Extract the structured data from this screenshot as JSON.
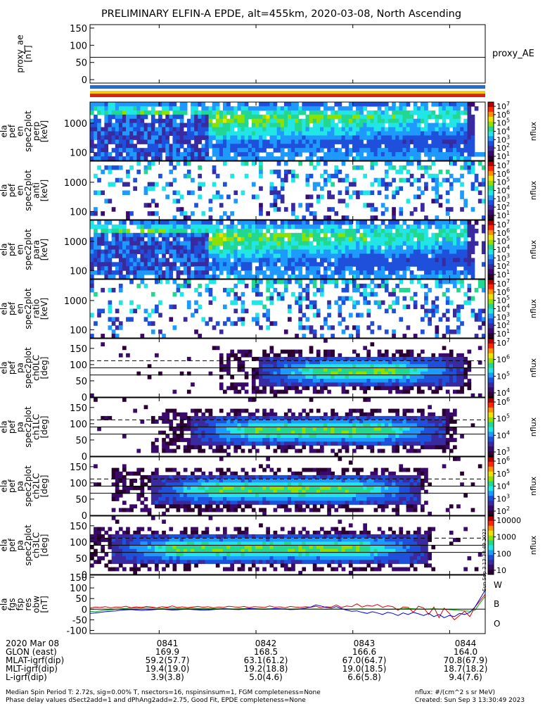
{
  "title": "PRELIMINARY ELFIN-A EPDE, alt=455km, 2020-03-08, North Ascending",
  "colors": {
    "bar_blue": "#1f6fd0",
    "bar_yellow": "#f0d000",
    "bar_red": "#e02010",
    "trace_w": "#e00000",
    "trace_b": "#00b000",
    "trace_o": "#0000e0"
  },
  "colorscale": [
    "#2a0030",
    "#3a0a6a",
    "#3a2aa0",
    "#1e50dc",
    "#1e9aff",
    "#22e6e6",
    "#22d890",
    "#8ee000",
    "#f0e000",
    "#ff9000",
    "#ff2800",
    "#b00000"
  ],
  "chart_data": [
    {
      "id": "proxy_ae",
      "type": "line",
      "ylabel": [
        "proxy_ae",
        "[nT]"
      ],
      "series_label": "proxy_AE",
      "ylim": [
        -10,
        160
      ],
      "yticks": [
        "150",
        "100",
        "50",
        "0"
      ],
      "y": 65
    },
    {
      "id": "spec_en_perp",
      "type": "heatmap",
      "ylabel": [
        "ela",
        "pef",
        "en",
        "spec2plot",
        "perp",
        "[keV]"
      ],
      "yscale": "log",
      "yticks": [
        "1000",
        "100"
      ],
      "cbar_ticks": [
        "10^7",
        "10^6",
        "10^5",
        "10^4",
        "10^3",
        "10^2",
        "10^1"
      ],
      "cbar_label": "nflux"
    },
    {
      "id": "spec_en_anti",
      "type": "heatmap",
      "ylabel": [
        "ela",
        "pef",
        "en",
        "spec2plot",
        "anti",
        "[keV]"
      ],
      "yscale": "log",
      "yticks": [
        "1000",
        "100"
      ],
      "cbar_ticks": [
        "10^7",
        "10^6",
        "10^5",
        "10^4",
        "10^3",
        "10^2",
        "10^1"
      ],
      "cbar_label": "nflux"
    },
    {
      "id": "spec_en_para",
      "type": "heatmap",
      "ylabel": [
        "ela",
        "pef",
        "en",
        "spec2plot",
        "para",
        "[keV]"
      ],
      "yscale": "log",
      "yticks": [
        "1000",
        "100"
      ],
      "cbar_ticks": [
        "10^7",
        "10^6",
        "10^5",
        "10^4",
        "10^3",
        "10^2",
        "10^1"
      ],
      "cbar_label": "nflux"
    },
    {
      "id": "spec_en_ratio",
      "type": "heatmap",
      "ylabel": [
        "ela",
        "pef",
        "en",
        "spec2plot",
        "ratio",
        "[keV]"
      ],
      "yscale": "log",
      "yticks": [
        "1000",
        "100"
      ],
      "cbar_ticks": [
        "10^7",
        "10^6",
        "10^5",
        "10^4",
        "10^3",
        "10^2",
        "10^1"
      ],
      "cbar_label": "nflux"
    },
    {
      "id": "pa_ch0LC",
      "type": "heatmap",
      "ylabel": [
        "ela",
        "pef",
        "pa",
        "spec2plot",
        "ch0LC",
        "[deg]"
      ],
      "ylim": [
        0,
        180
      ],
      "yticks": [
        "150",
        "100",
        "50",
        "0"
      ],
      "cbar_ticks": [
        "10^7",
        "10^6",
        "10^5",
        "10^4"
      ],
      "cbar_label": "nflux"
    },
    {
      "id": "pa_ch1LC",
      "type": "heatmap",
      "ylabel": [
        "ela",
        "pef",
        "pa",
        "spec2plot",
        "ch1LC",
        "[deg]"
      ],
      "ylim": [
        0,
        180
      ],
      "yticks": [
        "150",
        "100",
        "50",
        "0"
      ],
      "cbar_ticks": [
        "10^6",
        "10^5",
        "10^4",
        "10^3"
      ],
      "cbar_label": "nflux"
    },
    {
      "id": "pa_ch2LC",
      "type": "heatmap",
      "ylabel": [
        "ela",
        "pef",
        "pa",
        "spec2plot",
        "ch2LC",
        "[deg]"
      ],
      "ylim": [
        0,
        180
      ],
      "yticks": [
        "150",
        "100",
        "50",
        "0"
      ],
      "cbar_ticks": [
        "10^6",
        "10^5",
        "10^4",
        "10^3",
        "10^2"
      ],
      "cbar_label": "nflux"
    },
    {
      "id": "pa_ch3LC",
      "type": "heatmap",
      "ylabel": [
        "ela",
        "pef",
        "pa",
        "spec2plot",
        "ch3LC",
        "[deg]"
      ],
      "ylim": [
        0,
        180
      ],
      "yticks": [
        "150",
        "100",
        "50",
        "0"
      ],
      "cbar_ticks": [
        "10000",
        "1000",
        "100",
        "10"
      ],
      "cbar_label": "nflux"
    },
    {
      "id": "fgs_res",
      "type": "line",
      "ylabel": [
        "ela",
        "fgs",
        "fsp",
        "res",
        "obw",
        "[nT]"
      ],
      "ylim": [
        -115,
        160
      ],
      "yticks": [
        "150",
        "100",
        "50",
        "0",
        "-50",
        "-100"
      ],
      "series": [
        {
          "name": "W",
          "values": [
            5,
            10,
            8,
            12,
            6,
            10,
            9,
            14,
            7,
            11,
            8,
            13,
            10,
            6,
            12,
            9,
            15,
            8,
            11,
            7,
            10,
            13,
            9,
            12,
            6,
            10,
            8,
            14,
            11,
            9,
            13,
            7,
            12,
            10,
            8,
            15,
            9,
            11,
            6,
            13,
            10,
            8,
            12,
            9,
            14,
            7,
            11,
            10,
            20,
            8,
            15,
            12,
            25,
            10,
            18,
            14,
            22,
            9,
            16,
            12,
            -5,
            10,
            8,
            -15,
            14,
            6,
            -25,
            10,
            -40,
            5,
            -20,
            -50,
            -30,
            -10,
            -35,
            10,
            40,
            70
          ]
        },
        {
          "name": "B",
          "values": [
            -10,
            -12,
            -8,
            -5,
            -3,
            0,
            2,
            4,
            5,
            6,
            5,
            7,
            6,
            5,
            4,
            6,
            5,
            4,
            3,
            4,
            5,
            4,
            3,
            4,
            3,
            2,
            3,
            2,
            1,
            2,
            3,
            4,
            3,
            2,
            1,
            2,
            3,
            2,
            1,
            0,
            1,
            2,
            1,
            0,
            1,
            0,
            -1,
            0,
            1,
            0,
            -1,
            0,
            1,
            2,
            1,
            0,
            1,
            0,
            -1,
            0,
            1,
            2,
            3,
            2,
            1,
            0,
            1,
            2,
            1,
            0,
            -2,
            -4,
            -6,
            -8,
            -10,
            -5,
            30,
            60
          ]
        },
        {
          "name": "O",
          "values": [
            -20,
            -18,
            -15,
            -12,
            -10,
            -8,
            -5,
            -3,
            -2,
            -4,
            -6,
            -5,
            -3,
            -1,
            0,
            -2,
            -4,
            -3,
            -1,
            0,
            -2,
            -3,
            -5,
            -4,
            -2,
            0,
            2,
            1,
            -1,
            -2,
            0,
            3,
            2,
            0,
            -1,
            1,
            3,
            2,
            0,
            -2,
            -1,
            1,
            5,
            10,
            20,
            15,
            8,
            5,
            12,
            3,
            -5,
            -10,
            -8,
            -15,
            -20,
            -12,
            -18,
            -25,
            -15,
            -20,
            -30,
            -18,
            -25,
            -15,
            -22,
            -30,
            -20,
            -35,
            -25,
            -40,
            -30,
            -35,
            -20,
            -25,
            -15,
            10,
            50,
            90
          ]
        }
      ]
    }
  ],
  "footer": {
    "label_col": [
      "2020 Mar 08",
      "GLON (east)",
      "MLAT-igrf(dip)",
      "MLT-igrf(dip)",
      "L-igrf(dip)"
    ],
    "columns": [
      [
        "0841",
        "169.9",
        "59.2(57.7)",
        "19.4(19.0)",
        "3.9(3.8)"
      ],
      [
        "0842",
        "168.5",
        "63.1(61.2)",
        "19.2(18.8)",
        "5.0(4.6)"
      ],
      [
        "0843",
        "166.6",
        "67.0(64.7)",
        "19.0(18.5)",
        "6.6(5.8)"
      ],
      [
        "0844",
        "164.0",
        "70.8(67.9)",
        "18.7(18.2)",
        "9.4(7.6)"
      ]
    ],
    "note1": "Median Spin Period T: 2.72s, sig=0.00% T, nsectors=16, nspinsinsum=1, FGM completeness=None",
    "note2": "Phase delay values dSect2add=1 and dPhAng2add=2.75, Good Fit, EPDE completeness=None",
    "note3": "nflux: #/(cm^2 s sr MeV)",
    "note4": "Created: Sun Sep  3 13:30:49 2023",
    "side_stamp": "Sun Sep  3 13:30:49 2023"
  }
}
